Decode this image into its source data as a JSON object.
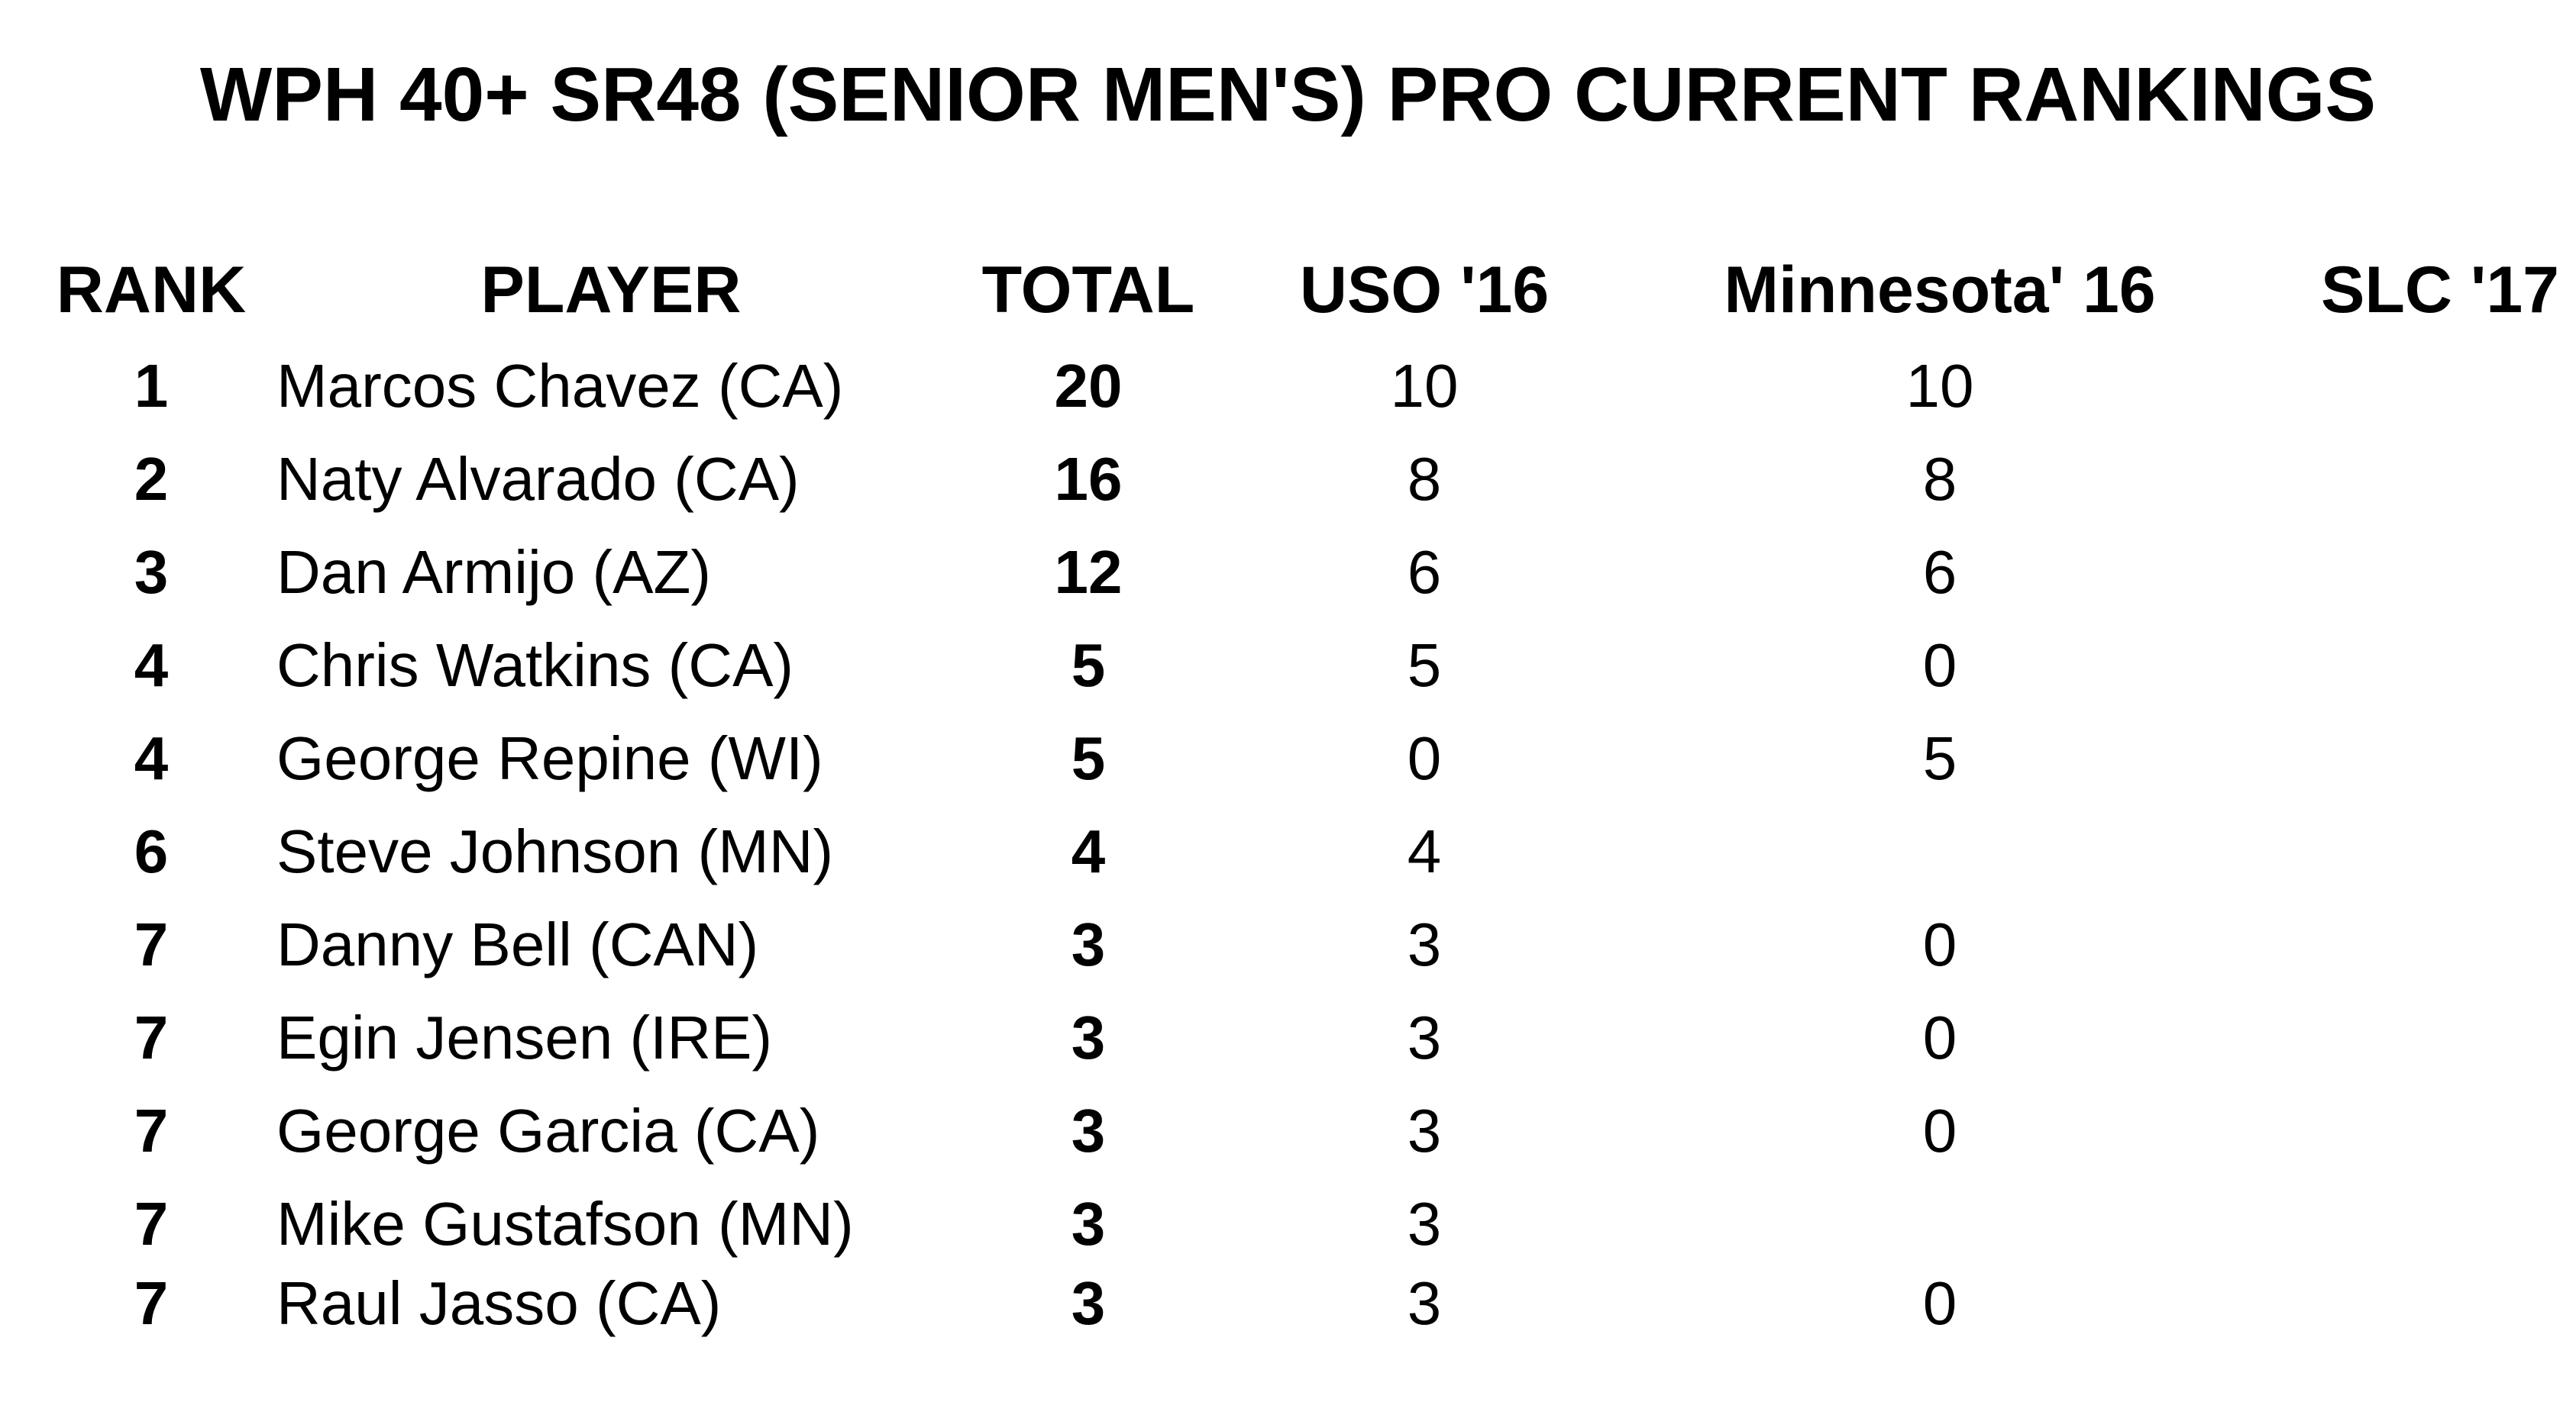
{
  "title": "WPH 40+ SR48 (SENIOR MEN'S) PRO CURRENT RANKINGS",
  "headers": {
    "rank": "RANK",
    "player": "PLAYER",
    "total": "TOTAL",
    "uso": "USO '16",
    "minnesota": "Minnesota' 16",
    "slc": "SLC '17"
  },
  "rows": [
    {
      "rank": "1",
      "player": "Marcos Chavez (CA)",
      "total": "20",
      "uso": "10",
      "minnesota": "10",
      "slc": ""
    },
    {
      "rank": "2",
      "player": "Naty Alvarado (CA)",
      "total": "16",
      "uso": "8",
      "minnesota": "8",
      "slc": ""
    },
    {
      "rank": "3",
      "player": "Dan Armijo (AZ)",
      "total": "12",
      "uso": "6",
      "minnesota": "6",
      "slc": ""
    },
    {
      "rank": "4",
      "player": "Chris Watkins (CA)",
      "total": "5",
      "uso": "5",
      "minnesota": "0",
      "slc": ""
    },
    {
      "rank": "4",
      "player": "George Repine (WI)",
      "total": "5",
      "uso": "0",
      "minnesota": "5",
      "slc": ""
    },
    {
      "rank": "6",
      "player": "Steve Johnson (MN)",
      "total": "4",
      "uso": "4",
      "minnesota": "",
      "slc": ""
    },
    {
      "rank": "7",
      "player": "Danny Bell (CAN)",
      "total": "3",
      "uso": "3",
      "minnesota": "0",
      "slc": ""
    },
    {
      "rank": "7",
      "player": "Egin Jensen (IRE)",
      "total": "3",
      "uso": "3",
      "minnesota": "0",
      "slc": ""
    },
    {
      "rank": "7",
      "player": "George Garcia (CA)",
      "total": "3",
      "uso": "3",
      "minnesota": "0",
      "slc": ""
    },
    {
      "rank": "7",
      "player": "Mike Gustafson (MN)",
      "total": "3",
      "uso": "3",
      "minnesota": "",
      "slc": ""
    },
    {
      "rank": "7",
      "player": "Raul Jasso (CA)",
      "total": "3",
      "uso": "3",
      "minnesota": "0",
      "slc": ""
    }
  ]
}
